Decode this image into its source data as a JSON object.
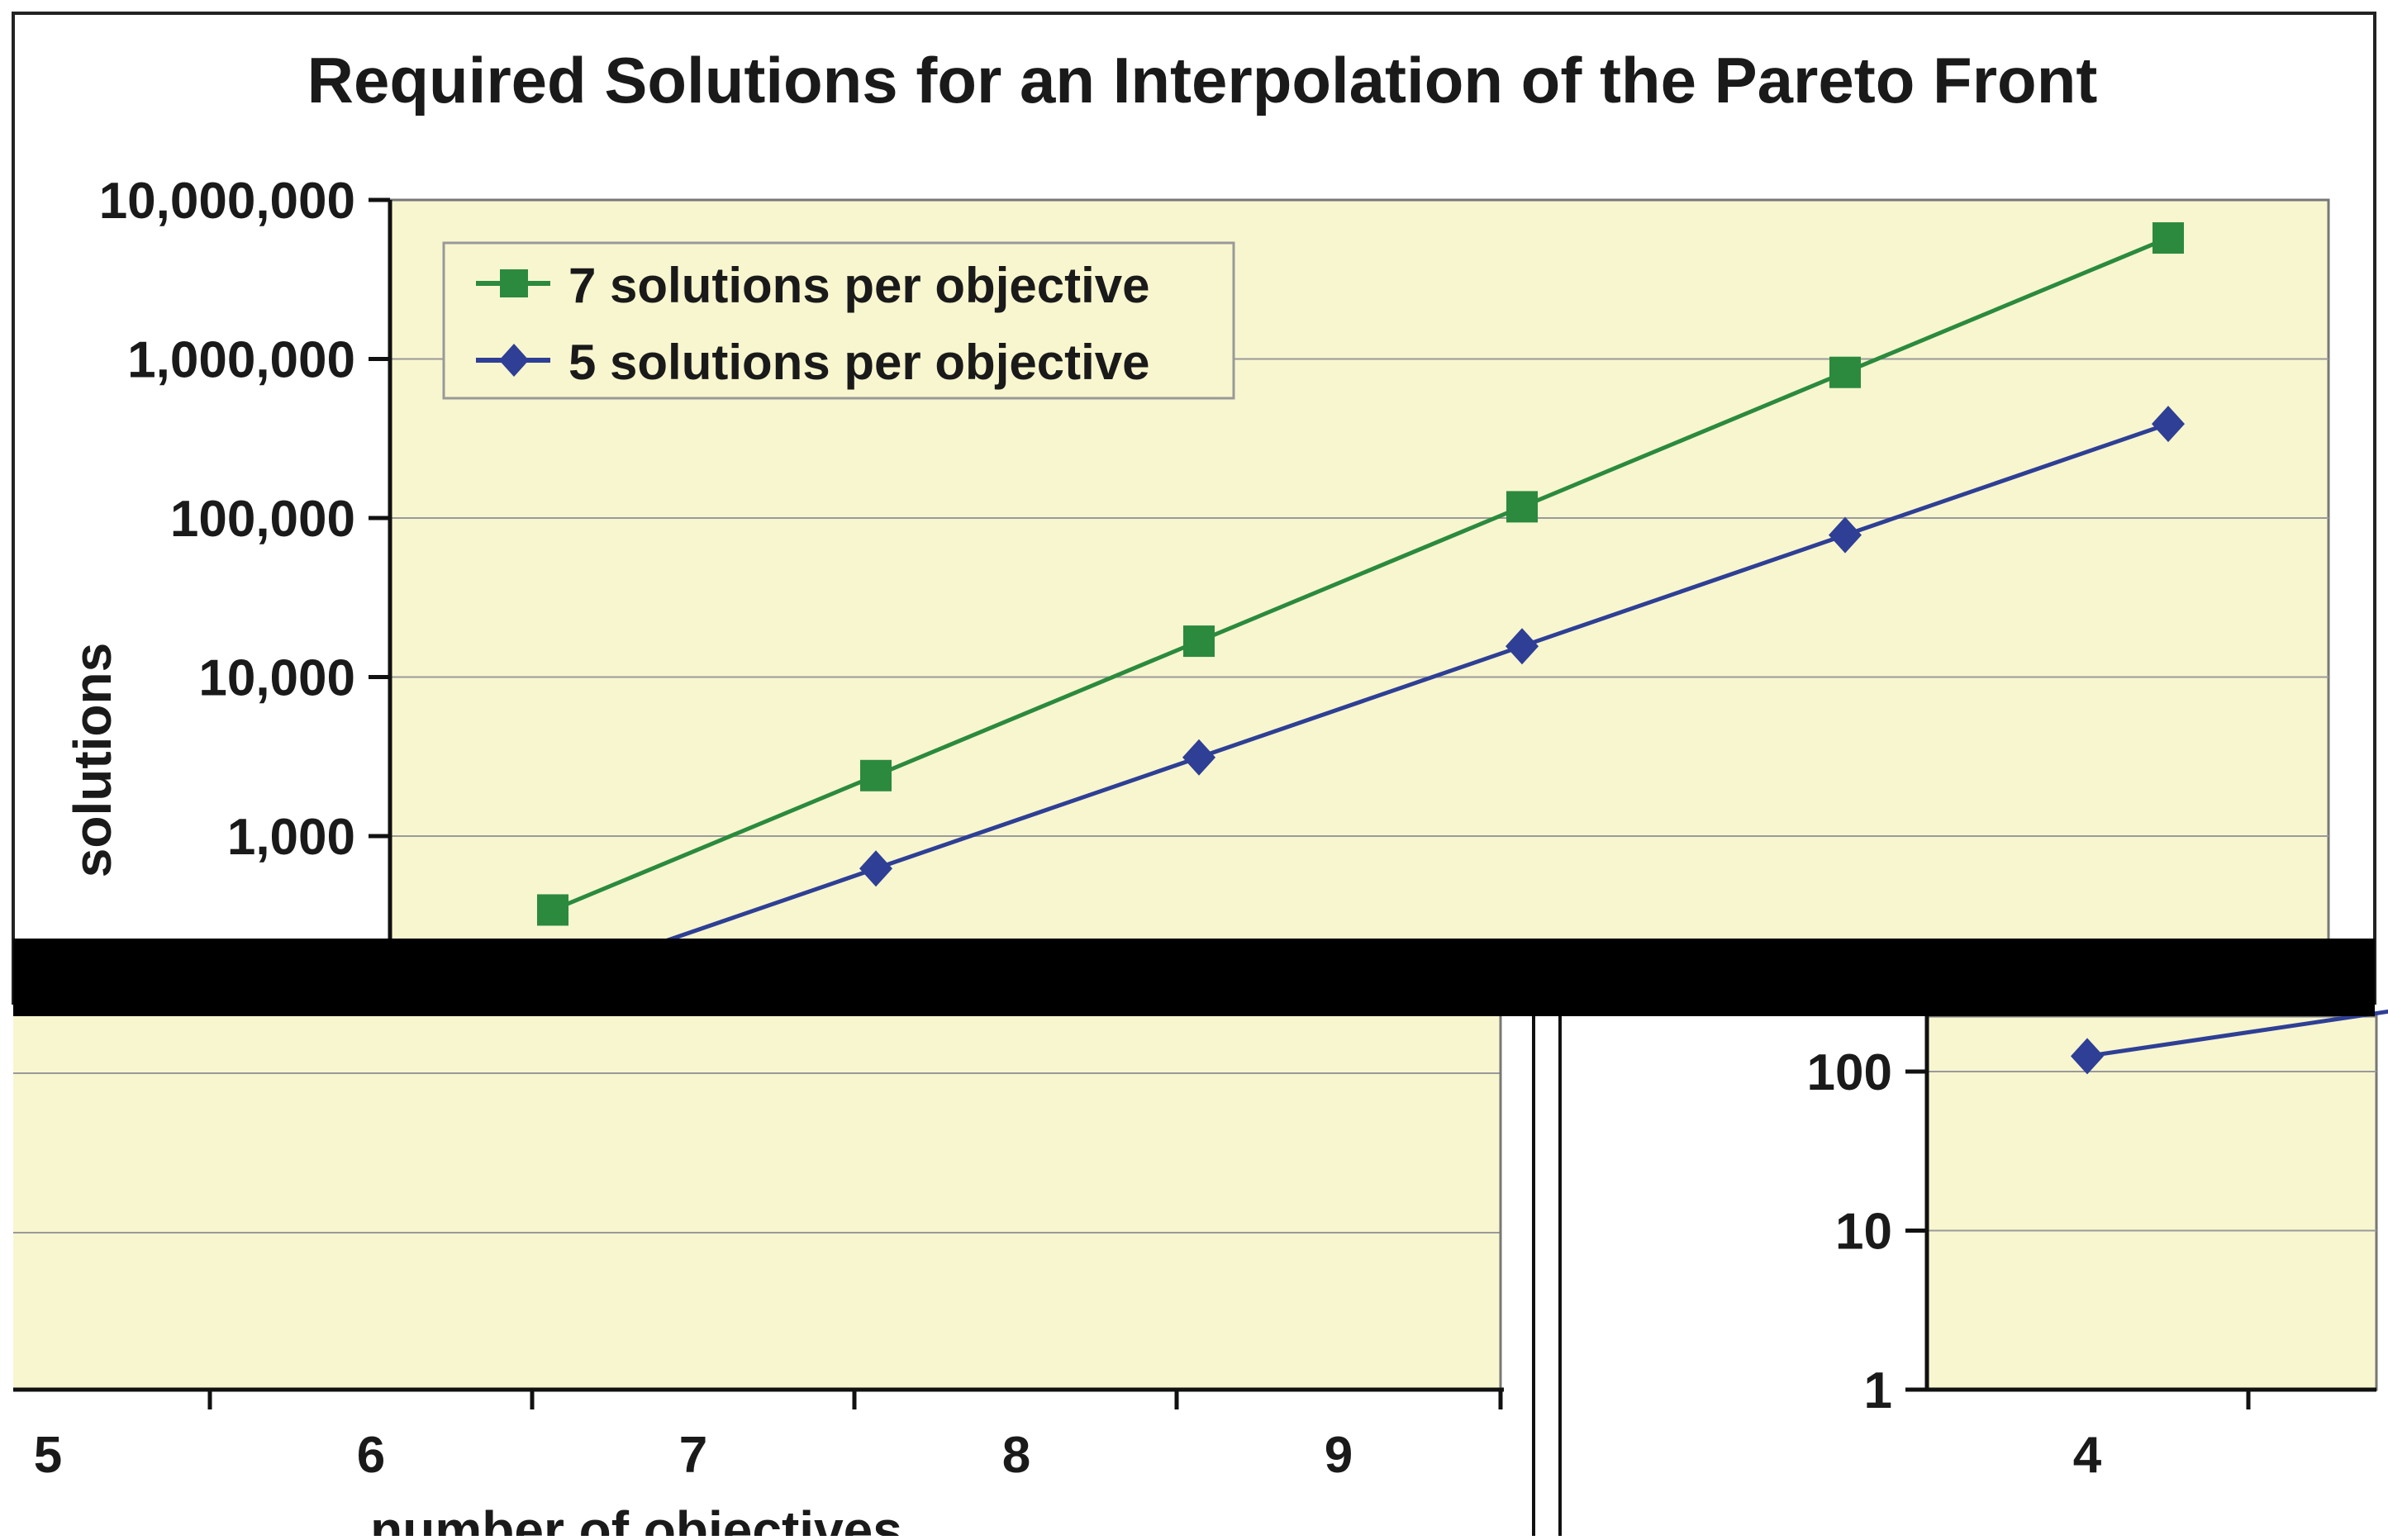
{
  "colors": {
    "plot_bg": "#f8f6cf",
    "gridline": "#9a9a9a",
    "series_green": "#2b8a3e",
    "series_blue": "#2e3f95",
    "occluder": "#000000"
  },
  "chart_data": [
    {
      "type": "line",
      "title": "Required Solutions for an Interpolation of the Pareto Front",
      "ylabel": "solutions",
      "xlabel": "",
      "yscale": "log",
      "ylim": [
        100,
        10000000
      ],
      "grid": true,
      "legend_position": "top-left",
      "x": [
        3,
        4,
        5,
        6,
        7,
        8
      ],
      "y_tick_labels": [
        "1,000",
        "10,000",
        "100,000",
        "1,000,000",
        "10,000,000"
      ],
      "series": [
        {
          "name": "7 solutions per objective",
          "color": "#2b8a3e",
          "marker": "square",
          "values": [
            343,
            2401,
            16807,
            117649,
            823543,
            5764801
          ]
        },
        {
          "name": "5 solutions per objective",
          "color": "#2e3f95",
          "marker": "diamond",
          "values": [
            125,
            625,
            3125,
            15625,
            78125,
            390625
          ]
        }
      ]
    },
    {
      "type": "line",
      "xlabel": "number of objectives",
      "ylabel": "",
      "x_tick_labels": [
        "5",
        "6",
        "7",
        "8",
        "9"
      ],
      "grid": true
    },
    {
      "type": "line",
      "yscale": "log",
      "ylim": [
        1,
        300
      ],
      "y_tick_labels": [
        "1",
        "10",
        "100"
      ],
      "x_tick_labels": [
        "4"
      ],
      "grid": true,
      "series": [
        {
          "name": "",
          "color": "#2e3f95",
          "marker": "diamond",
          "x": [
            4,
            5
          ],
          "values": [
            125,
            250
          ]
        }
      ]
    }
  ]
}
